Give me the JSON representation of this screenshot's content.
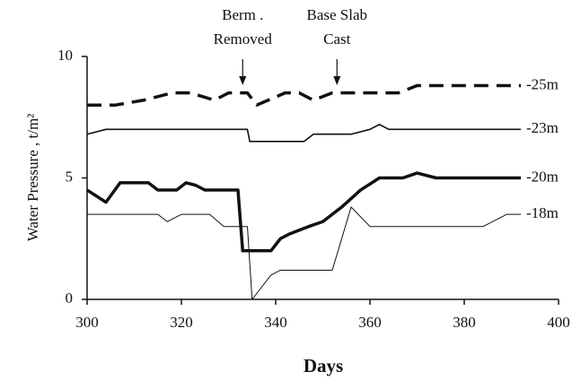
{
  "chart_data": {
    "type": "line",
    "xlabel": "Days",
    "ylabel": "Water Pressure , t/m²",
    "xlim": [
      300,
      400
    ],
    "xticks": [
      300,
      320,
      340,
      360,
      380,
      400
    ],
    "ylim": [
      0,
      10
    ],
    "yticks": [
      0,
      5,
      10
    ],
    "annotations": [
      {
        "lines": [
          "Berm .",
          "Removed"
        ],
        "x": 333
      },
      {
        "lines": [
          "Base Slab",
          "Cast"
        ],
        "x": 353
      }
    ],
    "series": [
      {
        "name": "-25m",
        "color": "#111",
        "width": 3.5,
        "dashed": true,
        "x": [
          300,
          306,
          312,
          318,
          322,
          327,
          330,
          334,
          336,
          342,
          345,
          348,
          352,
          366,
          370,
          392
        ],
        "values": [
          8,
          8,
          8.2,
          8.5,
          8.5,
          8.2,
          8.5,
          8.5,
          8,
          8.5,
          8.5,
          8.2,
          8.5,
          8.5,
          8.8,
          8.8
        ]
      },
      {
        "name": "-23m",
        "color": "#111",
        "width": 1.6,
        "dashed": false,
        "x": [
          300,
          304,
          334,
          334.5,
          346,
          348,
          356,
          360,
          362,
          364,
          392
        ],
        "values": [
          6.8,
          7,
          7,
          6.5,
          6.5,
          6.8,
          6.8,
          7,
          7.2,
          7,
          7
        ]
      },
      {
        "name": "-20m",
        "color": "#111",
        "width": 3.5,
        "dashed": false,
        "x": [
          300,
          304,
          307,
          313,
          315,
          319,
          321,
          323,
          325,
          332,
          333,
          339,
          341,
          343,
          347,
          350,
          354,
          358,
          362,
          367,
          370,
          374,
          392
        ],
        "values": [
          4.5,
          4,
          4.8,
          4.8,
          4.5,
          4.5,
          4.8,
          4.7,
          4.5,
          4.5,
          2,
          2,
          2.5,
          2.7,
          3,
          3.2,
          3.8,
          4.5,
          5,
          5,
          5.2,
          5,
          5
        ]
      },
      {
        "name": "-18m",
        "color": "#111",
        "width": 1,
        "dashed": false,
        "x": [
          300,
          315,
          317,
          320,
          326,
          329,
          334,
          335,
          339,
          341,
          352,
          356,
          360,
          384,
          389,
          392
        ],
        "values": [
          3.5,
          3.5,
          3.2,
          3.5,
          3.5,
          3,
          3,
          0,
          1,
          1.2,
          1.2,
          3.8,
          3,
          3,
          3.5,
          3.5
        ]
      }
    ]
  }
}
